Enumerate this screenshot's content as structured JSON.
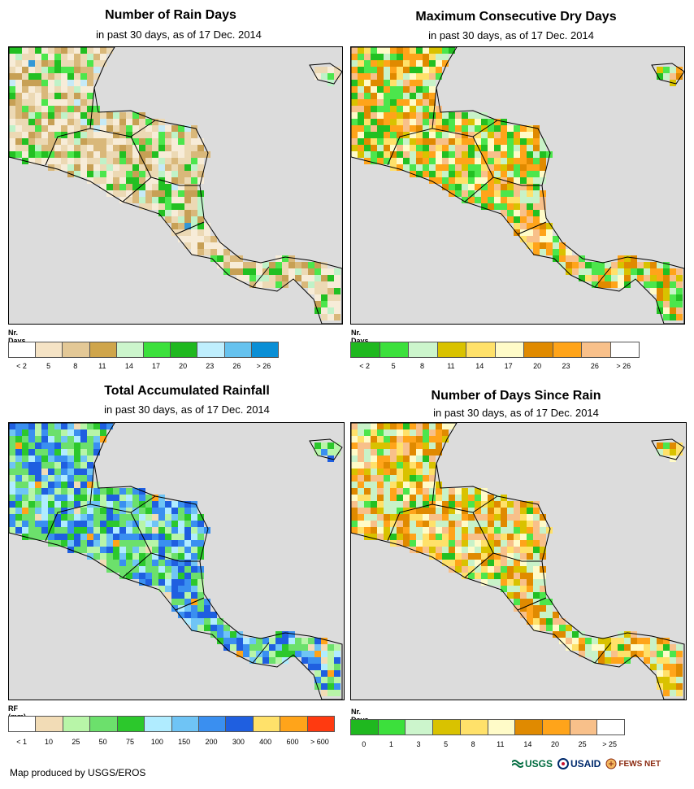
{
  "panels": [
    {
      "title": "Number of Rain Days",
      "subtitle": "in past 30 days, as of 17 Dec. 2014",
      "legend_title": "Nr. Days",
      "legend_colors": [
        "#ffffff",
        "#f5e3c5",
        "#e3c896",
        "#cfa54b",
        "#ccf5cc",
        "#3ce03c",
        "#1fb81f",
        "#bfeefd",
        "#66c2ee",
        "#0a8fd6"
      ],
      "legend_labels": [
        "< 2",
        "5",
        "8",
        "11",
        "14",
        "17",
        "20",
        "23",
        "26",
        "> 26"
      ],
      "palette": [
        "#f7ecd8",
        "#ecd9b4",
        "#d9b87a",
        "#c7a055",
        "#bff2c8",
        "#4ce64c",
        "#22c022",
        "#c6eaf7",
        "#3398d6"
      ],
      "weights": [
        20,
        22,
        18,
        10,
        8,
        10,
        8,
        2,
        1
      ]
    },
    {
      "title": "Maximum Consecutive Dry Days",
      "subtitle": "in past 30 days, as of 17 Dec. 2014",
      "legend_title": "Nr. Days",
      "legend_colors": [
        "#1fb81f",
        "#3ce03c",
        "#ccf5cc",
        "#d9c200",
        "#ffe16a",
        "#fffbc8",
        "#e08a00",
        "#ffa41a",
        "#f8c08a",
        "#ffffff"
      ],
      "legend_labels": [
        "< 2",
        "5",
        "8",
        "11",
        "14",
        "17",
        "20",
        "23",
        "26",
        "> 26"
      ],
      "palette": [
        "#22c022",
        "#4ce64c",
        "#c8f2c8",
        "#d9c200",
        "#ffe16a",
        "#fffbc8",
        "#e08a00",
        "#ffa41a",
        "#f8c08a"
      ],
      "weights": [
        10,
        14,
        10,
        6,
        6,
        8,
        12,
        22,
        12
      ]
    },
    {
      "title": "Total Accumulated Rainfall",
      "subtitle": "in past 30 days, as of 17 Dec. 2014",
      "legend_title": "RF (mm)",
      "legend_colors": [
        "#ffffff",
        "#f2dcb6",
        "#b8f5a8",
        "#6ce06c",
        "#2cc82c",
        "#b0ecff",
        "#6fc4f5",
        "#3a8ff0",
        "#1f5fe0",
        "#ffe16a",
        "#ffa41a",
        "#ff3a10"
      ],
      "legend_labels": [
        "< 1",
        "10",
        "25",
        "50",
        "75",
        "100",
        "150",
        "200",
        "300",
        "400",
        "600",
        "> 600"
      ],
      "palette": [
        "#f2dcb6",
        "#b8f5a8",
        "#6ce06c",
        "#2cc82c",
        "#b0ecff",
        "#6fc4f5",
        "#3a8ff0",
        "#1f5fe0",
        "#ffa41a"
      ],
      "weights": [
        3,
        14,
        22,
        10,
        6,
        8,
        14,
        14,
        2
      ]
    },
    {
      "title": "Number of Days Since Rain",
      "subtitle": "in past 30 days, as of 17 Dec. 2014",
      "legend_title": "Nr. Days",
      "legend_colors": [
        "#1fb81f",
        "#3ce03c",
        "#ccf5cc",
        "#d9c200",
        "#ffe16a",
        "#fffbc8",
        "#e08a00",
        "#ffa41a",
        "#f8c08a",
        "#ffffff"
      ],
      "legend_labels": [
        "0",
        "1",
        "3",
        "5",
        "8",
        "11",
        "14",
        "20",
        "25",
        "> 25"
      ],
      "palette": [
        "#22c022",
        "#4ce64c",
        "#c8f2c8",
        "#d9c200",
        "#ffe16a",
        "#fffbc8",
        "#e08a00",
        "#ffa41a",
        "#f8c08a"
      ],
      "weights": [
        4,
        6,
        18,
        10,
        14,
        8,
        14,
        14,
        18
      ]
    }
  ],
  "credit": "Map produced by USGS/EROS",
  "logos": {
    "usgs": "USGS",
    "usaid": "USAID",
    "fewsnet": "FEWS NET"
  },
  "colors": {
    "ocean": "#dcdcdc",
    "border": "#000000"
  }
}
